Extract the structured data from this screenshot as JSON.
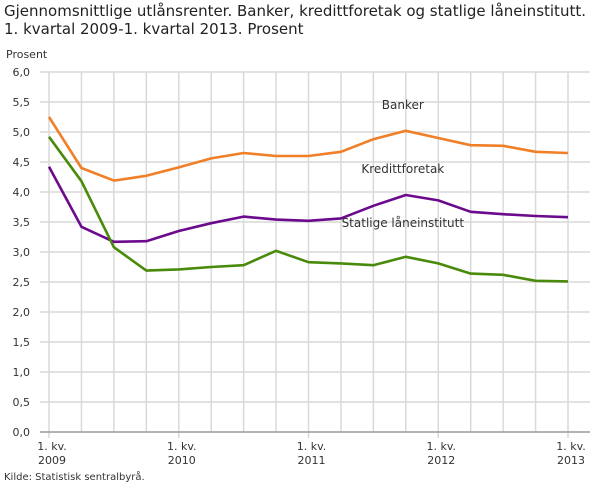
{
  "title_lines": [
    "Gjennomsnittlige utlånsrenter. Banker, kredittforetak og statlige låneinstitutt.",
    "1. kvartal 2009-1. kvartal 2013. Prosent"
  ],
  "source": "Kilde: Statistisk sentralbyrå.",
  "chart_data": {
    "type": "line",
    "title": "Gjennomsnittlige utlånsrenter. Banker, kredittforetak og statlige låneinstitutt. 1. kvartal 2009-1. kvartal 2013. Prosent",
    "ylabel": "Prosent",
    "ylim": [
      0,
      6
    ],
    "yticks": [
      "0,0",
      "0,5",
      "1,0",
      "1,5",
      "2,0",
      "2,5",
      "3,0",
      "3,5",
      "4,0",
      "4,5",
      "5,0",
      "5,5",
      "6,0"
    ],
    "x": [
      "2009K1",
      "2009K2",
      "2009K3",
      "2009K4",
      "2010K1",
      "2010K2",
      "2010K3",
      "2010K4",
      "2011K1",
      "2011K2",
      "2011K3",
      "2011K4",
      "2012K1",
      "2012K2",
      "2012K3",
      "2012K4",
      "2013K1"
    ],
    "xticks": [
      {
        "index": 0,
        "line1": "1. kv.",
        "line2": "2009"
      },
      {
        "index": 4,
        "line1": "1. kv.",
        "line2": "2010"
      },
      {
        "index": 8,
        "line1": "1. kv.",
        "line2": "2011"
      },
      {
        "index": 12,
        "line1": "1. kv.",
        "line2": "2012"
      },
      {
        "index": 16,
        "line1": "1. kv.",
        "line2": "2013"
      }
    ],
    "grid": true,
    "series": [
      {
        "name": "Banker",
        "color": "#f07f28",
        "values": [
          5.25,
          4.4,
          4.19,
          4.27,
          4.41,
          4.56,
          4.65,
          4.6,
          4.6,
          4.67,
          4.88,
          5.02,
          4.9,
          4.78,
          4.77,
          4.67,
          4.65
        ]
      },
      {
        "name": "Kredittforetak",
        "color": "#6b0a8c",
        "values": [
          4.42,
          3.42,
          3.17,
          3.18,
          3.35,
          3.48,
          3.59,
          3.54,
          3.52,
          3.56,
          3.77,
          3.95,
          3.86,
          3.67,
          3.63,
          3.6,
          3.58
        ]
      },
      {
        "name": "Statlige låneinstitutt",
        "color": "#4a8a0a",
        "values": [
          4.92,
          4.18,
          3.08,
          2.69,
          2.71,
          2.75,
          2.78,
          3.02,
          2.83,
          2.81,
          2.78,
          2.92,
          2.81,
          2.64,
          2.62,
          2.52,
          2.51
        ]
      }
    ]
  }
}
